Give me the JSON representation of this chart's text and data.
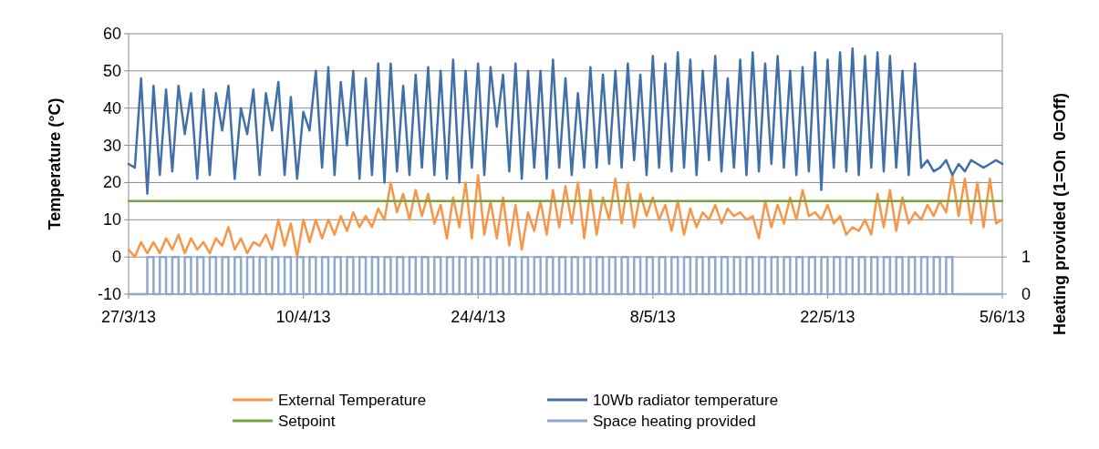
{
  "chart_data": {
    "type": "line",
    "ylabel": "Temperature (°C)",
    "y2label": "Heating provided (1=On  0=Off)",
    "x": [
      "2013-03-27T00:00",
      "2013-03-27T12:00",
      "2013-03-28T00:00",
      "2013-03-28T12:00",
      "2013-03-29T00:00",
      "2013-03-29T12:00",
      "2013-03-30T00:00",
      "2013-03-30T12:00",
      "2013-03-31T00:00",
      "2013-03-31T12:00",
      "2013-04-01T00:00",
      "2013-04-01T12:00",
      "2013-04-02T00:00",
      "2013-04-02T12:00",
      "2013-04-03T00:00",
      "2013-04-03T12:00",
      "2013-04-04T00:00",
      "2013-04-04T12:00",
      "2013-04-05T00:00",
      "2013-04-05T12:00",
      "2013-04-06T00:00",
      "2013-04-06T12:00",
      "2013-04-07T00:00",
      "2013-04-07T12:00",
      "2013-04-08T00:00",
      "2013-04-08T12:00",
      "2013-04-09T00:00",
      "2013-04-09T12:00",
      "2013-04-10T00:00",
      "2013-04-10T12:00",
      "2013-04-11T00:00",
      "2013-04-11T12:00",
      "2013-04-12T00:00",
      "2013-04-12T12:00",
      "2013-04-13T00:00",
      "2013-04-13T12:00",
      "2013-04-14T00:00",
      "2013-04-14T12:00",
      "2013-04-15T00:00",
      "2013-04-15T12:00",
      "2013-04-16T00:00",
      "2013-04-16T12:00",
      "2013-04-17T00:00",
      "2013-04-17T12:00",
      "2013-04-18T00:00",
      "2013-04-18T12:00",
      "2013-04-19T00:00",
      "2013-04-19T12:00",
      "2013-04-20T00:00",
      "2013-04-20T12:00",
      "2013-04-21T00:00",
      "2013-04-21T12:00",
      "2013-04-22T00:00",
      "2013-04-22T12:00",
      "2013-04-23T00:00",
      "2013-04-23T12:00",
      "2013-04-24T00:00",
      "2013-04-24T12:00",
      "2013-04-25T00:00",
      "2013-04-25T12:00",
      "2013-04-26T00:00",
      "2013-04-26T12:00",
      "2013-04-27T00:00",
      "2013-04-27T12:00",
      "2013-04-28T00:00",
      "2013-04-28T12:00",
      "2013-04-29T00:00",
      "2013-04-29T12:00",
      "2013-04-30T00:00",
      "2013-04-30T12:00",
      "2013-05-01T00:00",
      "2013-05-01T12:00",
      "2013-05-02T00:00",
      "2013-05-02T12:00",
      "2013-05-03T00:00",
      "2013-05-03T12:00",
      "2013-05-04T00:00",
      "2013-05-04T12:00",
      "2013-05-05T00:00",
      "2013-05-05T12:00",
      "2013-05-06T00:00",
      "2013-05-06T12:00",
      "2013-05-07T00:00",
      "2013-05-07T12:00",
      "2013-05-08T00:00",
      "2013-05-08T12:00",
      "2013-05-09T00:00",
      "2013-05-09T12:00",
      "2013-05-10T00:00",
      "2013-05-10T12:00",
      "2013-05-11T00:00",
      "2013-05-11T12:00",
      "2013-05-12T00:00",
      "2013-05-12T12:00",
      "2013-05-13T00:00",
      "2013-05-13T12:00",
      "2013-05-14T00:00",
      "2013-05-14T12:00",
      "2013-05-15T00:00",
      "2013-05-15T12:00",
      "2013-05-16T00:00",
      "2013-05-16T12:00",
      "2013-05-17T00:00",
      "2013-05-17T12:00",
      "2013-05-18T00:00",
      "2013-05-18T12:00",
      "2013-05-19T00:00",
      "2013-05-19T12:00",
      "2013-05-20T00:00",
      "2013-05-20T12:00",
      "2013-05-21T00:00",
      "2013-05-21T12:00",
      "2013-05-22T00:00",
      "2013-05-22T12:00",
      "2013-05-23T00:00",
      "2013-05-23T12:00",
      "2013-05-24T00:00",
      "2013-05-24T12:00",
      "2013-05-25T00:00",
      "2013-05-25T12:00",
      "2013-05-26T00:00",
      "2013-05-26T12:00",
      "2013-05-27T00:00",
      "2013-05-27T12:00",
      "2013-05-28T00:00",
      "2013-05-28T12:00",
      "2013-05-29T00:00",
      "2013-05-29T12:00",
      "2013-05-30T00:00",
      "2013-05-30T12:00",
      "2013-05-31T00:00",
      "2013-05-31T12:00",
      "2013-06-01T00:00",
      "2013-06-01T12:00",
      "2013-06-02T00:00",
      "2013-06-02T12:00",
      "2013-06-03T00:00",
      "2013-06-03T12:00",
      "2013-06-04T00:00",
      "2013-06-04T12:00",
      "2013-06-05T00:00"
    ],
    "series": [
      {
        "name": "External Temperature",
        "color": "#f79646",
        "values": [
          2,
          0,
          4,
          1,
          4,
          1,
          5,
          2,
          6,
          1,
          5,
          2,
          4,
          1,
          5,
          3,
          8,
          2,
          5,
          1,
          4,
          3,
          6,
          2,
          10,
          3,
          9,
          0,
          10,
          4,
          10,
          5,
          10,
          6,
          11,
          7,
          12,
          8,
          11,
          8,
          13,
          10,
          20,
          12,
          17,
          10,
          18,
          11,
          17,
          9,
          14,
          5,
          16,
          8,
          20,
          5,
          22,
          6,
          15,
          5,
          16,
          3,
          14,
          2,
          12,
          7,
          15,
          6,
          18,
          8,
          19,
          9,
          20,
          5,
          18,
          6,
          16,
          10,
          21,
          9,
          20,
          8,
          17,
          11,
          16,
          10,
          14,
          7,
          15,
          6,
          13,
          8,
          12,
          10,
          14,
          9,
          13,
          11,
          12,
          10,
          11,
          5,
          15,
          8,
          14,
          9,
          16,
          10,
          18,
          11,
          12,
          10,
          14,
          9,
          11,
          6,
          8,
          7,
          10,
          6,
          17,
          8,
          18,
          7,
          16,
          9,
          12,
          10,
          14,
          11,
          15,
          12,
          22,
          11,
          21,
          9,
          20,
          8,
          21,
          9,
          10
        ]
      },
      {
        "name": "10Wb radiator temperature",
        "color": "#4170a8",
        "values": [
          25,
          24,
          48,
          17,
          46,
          22,
          45,
          23,
          46,
          33,
          44,
          21,
          45,
          22,
          44,
          34,
          46,
          21,
          40,
          33,
          45,
          22,
          44,
          34,
          47,
          22,
          43,
          21,
          39,
          34,
          50,
          24,
          51,
          22,
          47,
          30,
          50,
          21,
          48,
          22,
          52,
          20,
          52,
          23,
          46,
          22,
          49,
          24,
          51,
          22,
          50,
          21,
          53,
          20,
          50,
          24,
          52,
          22,
          51,
          35,
          49,
          23,
          52,
          21,
          50,
          24,
          50,
          21,
          53,
          24,
          48,
          22,
          44,
          24,
          51,
          24,
          49,
          25,
          50,
          24,
          52,
          26,
          49,
          22,
          54,
          24,
          52,
          23,
          55,
          24,
          53,
          22,
          50,
          26,
          54,
          23,
          48,
          24,
          53,
          22,
          55,
          23,
          52,
          25,
          54,
          24,
          50,
          22,
          51,
          23,
          55,
          18,
          53,
          24,
          55,
          23,
          56,
          22,
          54,
          24,
          55,
          23,
          54,
          24,
          50,
          22,
          52,
          24,
          26,
          23,
          24,
          26,
          22,
          25,
          23,
          26,
          25,
          24,
          25,
          26,
          25
        ]
      },
      {
        "name": "Setpoint",
        "color": "#77a23f",
        "x": [
          "2013-03-27",
          "2013-06-05"
        ],
        "values": [
          15,
          15
        ]
      },
      {
        "name": "Space heating provided",
        "color": "#8ea8d0",
        "type": "step",
        "axis": "y2",
        "values": [
          0,
          0,
          0,
          1,
          0,
          1,
          0,
          1,
          0,
          1,
          0,
          1,
          0,
          1,
          0,
          1,
          0,
          1,
          0,
          1,
          0,
          1,
          0,
          1,
          0,
          1,
          0,
          1,
          0,
          1,
          0,
          1,
          0,
          1,
          0,
          1,
          0,
          1,
          0,
          1,
          0,
          1,
          0,
          1,
          0,
          1,
          0,
          1,
          0,
          1,
          0,
          1,
          0,
          1,
          0,
          1,
          0,
          1,
          0,
          1,
          0,
          1,
          0,
          1,
          0,
          1,
          0,
          1,
          0,
          1,
          0,
          1,
          0,
          1,
          0,
          1,
          0,
          1,
          0,
          1,
          0,
          1,
          0,
          1,
          0,
          1,
          0,
          1,
          0,
          1,
          0,
          1,
          0,
          1,
          0,
          1,
          0,
          1,
          0,
          1,
          0,
          1,
          0,
          1,
          0,
          1,
          0,
          1,
          0,
          1,
          0,
          1,
          0,
          1,
          0,
          1,
          0,
          1,
          0,
          1,
          0,
          1,
          0,
          1,
          0,
          1,
          0,
          1,
          0,
          1,
          0,
          1,
          0,
          0,
          0,
          0,
          0,
          0,
          0,
          0,
          0
        ]
      }
    ],
    "xlim": [
      "2013-03-27",
      "2013-06-05"
    ],
    "xticks": [
      {
        "value": "2013-03-27",
        "label": "27/3/13"
      },
      {
        "value": "2013-04-10",
        "label": "10/4/13"
      },
      {
        "value": "2013-04-24",
        "label": "24/4/13"
      },
      {
        "value": "2013-05-08",
        "label": "8/5/13"
      },
      {
        "value": "2013-05-22",
        "label": "22/5/13"
      },
      {
        "value": "2013-06-05",
        "label": "5/6/13"
      }
    ],
    "ylim": [
      -10,
      60
    ],
    "yticks": [
      -10,
      0,
      10,
      20,
      30,
      40,
      50,
      60
    ],
    "y2lim": [
      0,
      7
    ],
    "y2ticks": [
      0,
      1
    ],
    "grid": "y",
    "legend": "bottom",
    "line_style": "solid",
    "marker": "none"
  }
}
